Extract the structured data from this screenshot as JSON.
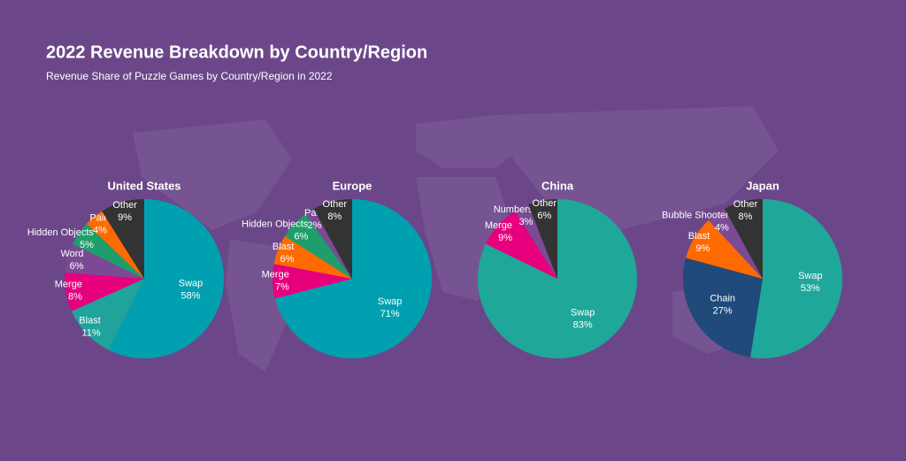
{
  "header": {
    "title": "2022 Revenue Breakdown by Country/Region",
    "subtitle": "Revenue Share of Puzzle Games by Country/Region in 2022"
  },
  "chart_data": [
    {
      "type": "pie",
      "title": "United States",
      "categories": [
        "Swap",
        "Blast",
        "Merge",
        "Word",
        "Hidden Objects",
        "Pair",
        "Other"
      ],
      "values": [
        58,
        11,
        8,
        6,
        5,
        4,
        9
      ],
      "value_labels": [
        "58%",
        "11%",
        "8%",
        "6%",
        "5%",
        "4%",
        "9%"
      ],
      "colors": [
        "#00a0b0",
        "#1fa39a",
        "#e6007e",
        "#7b4a94",
        "#1e9e6b",
        "#ff6a00",
        "#333333"
      ]
    },
    {
      "type": "pie",
      "title": "Europe",
      "categories": [
        "Swap",
        "Merge",
        "Blast",
        "Hidden Objects",
        "Pair",
        "Other"
      ],
      "values": [
        71,
        7,
        6,
        6,
        2,
        8
      ],
      "value_labels": [
        "71%",
        "7%",
        "6%",
        "6%",
        "2%",
        "8%"
      ],
      "colors": [
        "#00a0b0",
        "#e6007e",
        "#ff6a00",
        "#1e9e6b",
        "#7b4a94",
        "#333333"
      ]
    },
    {
      "type": "pie",
      "title": "China",
      "categories": [
        "Swap",
        "Merge",
        "Numbers",
        "Other"
      ],
      "values": [
        83,
        9,
        3,
        6
      ],
      "value_labels": [
        "83%",
        "9%",
        "3%",
        "6%"
      ],
      "colors": [
        "#1fa89a",
        "#e6007e",
        "#7b4a94",
        "#333333"
      ]
    },
    {
      "type": "pie",
      "title": "Japan",
      "categories": [
        "Swap",
        "Chain",
        "Blast",
        "Bubble Shooter",
        "Other"
      ],
      "values": [
        53,
        27,
        9,
        4,
        8
      ],
      "value_labels": [
        "53%",
        "27%",
        "9%",
        "4%",
        "8%"
      ],
      "colors": [
        "#1fa89a",
        "#1f4a7a",
        "#ff6a00",
        "#7b4a94",
        "#333333"
      ]
    }
  ]
}
